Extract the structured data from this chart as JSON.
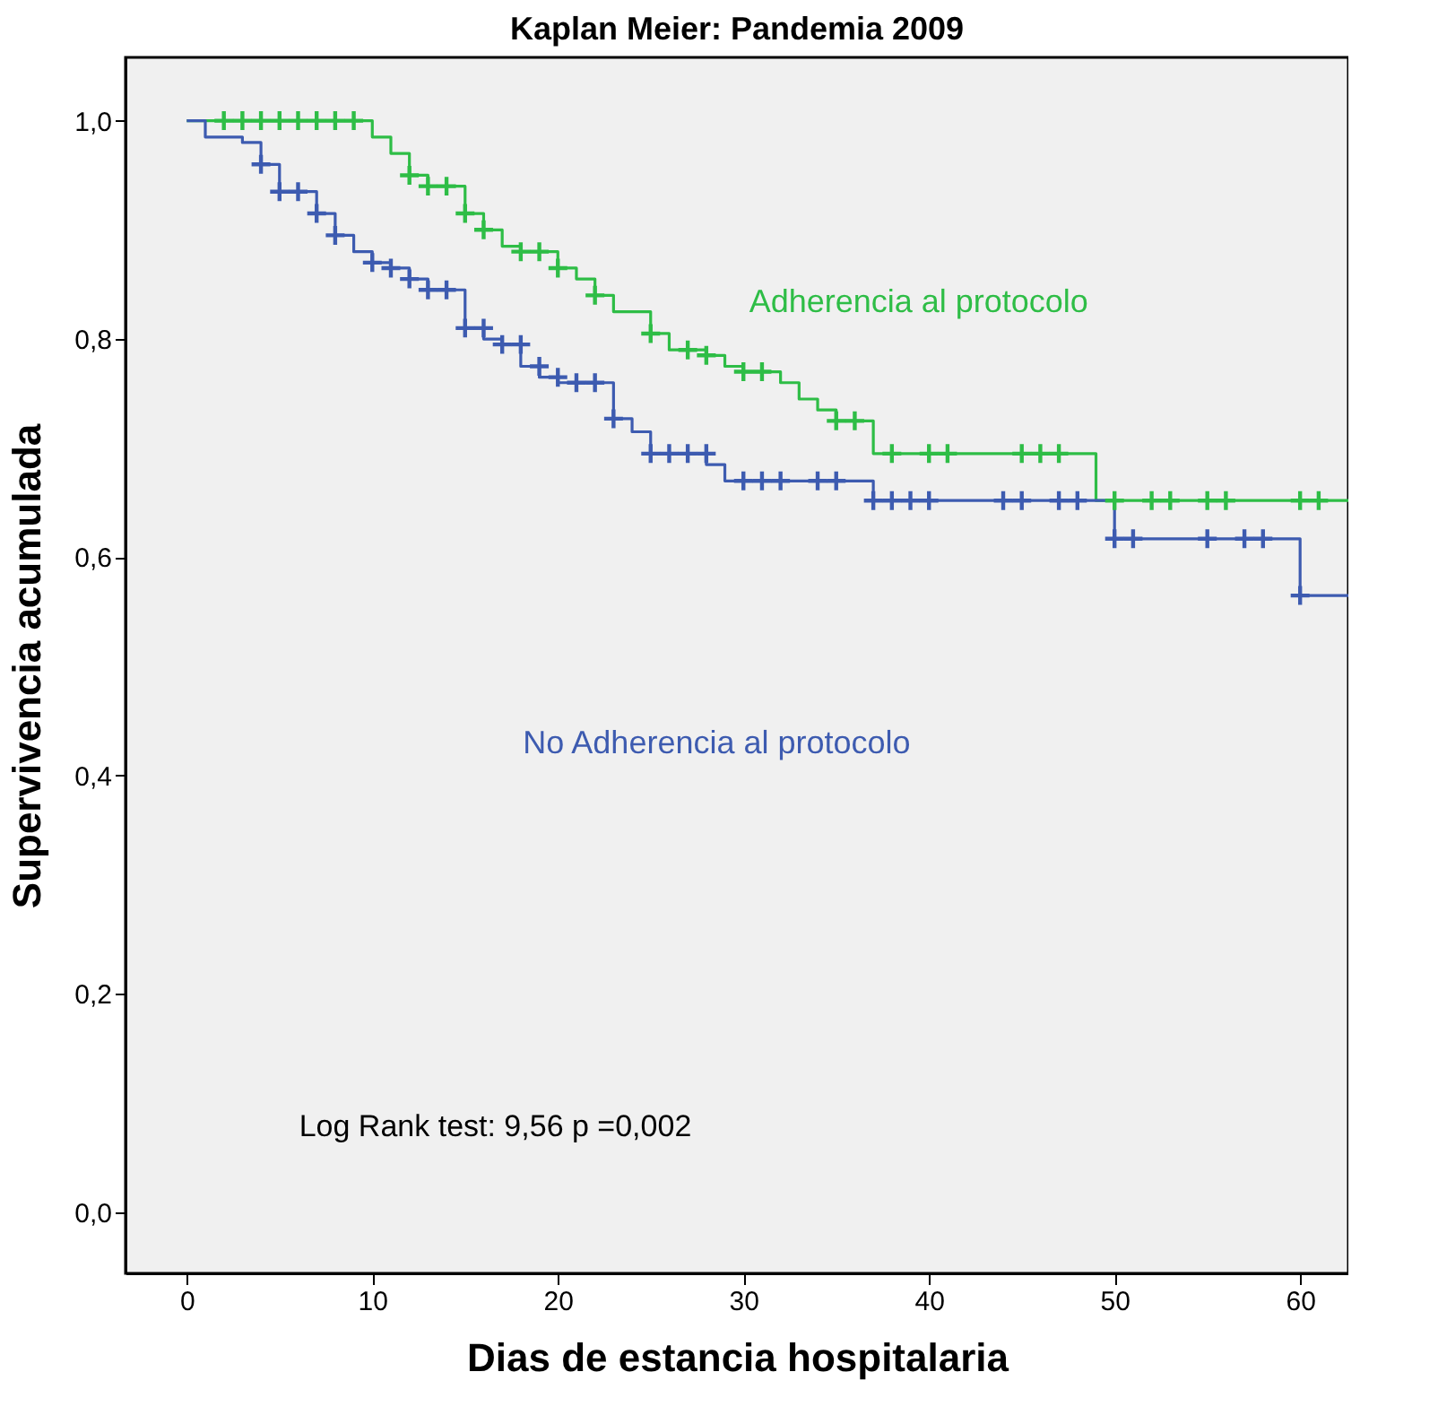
{
  "chart_data": {
    "type": "step",
    "title": "Kaplan Meier: Pandemia 2009",
    "xlabel": "Dias de estancia hospitalaria",
    "ylabel": "Supervivencia acumulada",
    "xlim": [
      -3.3,
      62.6
    ],
    "ylim": [
      -0.056,
      1.058
    ],
    "xticks": [
      0,
      10,
      20,
      30,
      40,
      50,
      60
    ],
    "yticks": [
      {
        "value": 0,
        "label": "0,0"
      },
      {
        "value": 0.2,
        "label": "0,2"
      },
      {
        "value": 0.4,
        "label": "0,4"
      },
      {
        "value": 0.6,
        "label": "0,6"
      },
      {
        "value": 0.8,
        "label": "0,8"
      },
      {
        "value": 1,
        "label": "1,0"
      }
    ],
    "grid": false,
    "line_style": "solid",
    "series": [
      {
        "name": "Adherencia al protocolo",
        "color": "#2ebd46",
        "x": [
          0,
          10,
          11,
          12,
          13,
          15,
          16,
          17,
          18,
          20,
          21,
          22,
          23,
          25,
          26,
          28,
          29,
          30,
          32,
          33,
          34,
          35,
          37,
          49,
          62.6
        ],
        "values": [
          1.0,
          0.985,
          0.97,
          0.95,
          0.94,
          0.915,
          0.9,
          0.885,
          0.88,
          0.865,
          0.855,
          0.84,
          0.825,
          0.805,
          0.79,
          0.785,
          0.775,
          0.77,
          0.76,
          0.745,
          0.735,
          0.725,
          0.695,
          0.652,
          0.652
        ]
      },
      {
        "name": "No Adherencia al protocolo",
        "color": "#3d5bb0",
        "x": [
          0,
          1,
          3,
          4,
          5,
          7,
          8,
          9,
          10,
          11,
          12,
          13,
          15,
          16,
          17,
          18,
          19,
          20,
          23,
          24,
          25,
          28,
          29,
          37,
          50,
          60,
          62.6
        ],
        "values": [
          1.0,
          0.985,
          0.98,
          0.96,
          0.935,
          0.915,
          0.895,
          0.88,
          0.87,
          0.865,
          0.855,
          0.845,
          0.81,
          0.8,
          0.795,
          0.775,
          0.765,
          0.76,
          0.727,
          0.715,
          0.695,
          0.685,
          0.67,
          0.652,
          0.617,
          0.565,
          0.565
        ]
      },
      {
        "type": "scatter",
        "marker": "cross",
        "color": "#2ebd46",
        "x": [
          2,
          3,
          4,
          5,
          6,
          7,
          8,
          9,
          12,
          13,
          14,
          15,
          16,
          18,
          19,
          20,
          22,
          25,
          27,
          28,
          30,
          31,
          35,
          36,
          38,
          40,
          41,
          45,
          46,
          47,
          50,
          52,
          53,
          55,
          56,
          60,
          61
        ],
        "values": [
          1,
          1,
          1,
          1,
          1,
          1,
          1,
          1,
          0.95,
          0.94,
          0.94,
          0.915,
          0.9,
          0.88,
          0.88,
          0.865,
          0.84,
          0.805,
          0.79,
          0.785,
          0.77,
          0.77,
          0.725,
          0.725,
          0.695,
          0.695,
          0.695,
          0.695,
          0.695,
          0.695,
          0.652,
          0.652,
          0.652,
          0.652,
          0.652,
          0.652,
          0.652
        ]
      },
      {
        "type": "scatter",
        "marker": "cross",
        "color": "#3d5bb0",
        "x": [
          4,
          5,
          6,
          7,
          8,
          10,
          11,
          12,
          13,
          14,
          15,
          16,
          17,
          18,
          19,
          20,
          21,
          22,
          23,
          25,
          26,
          27,
          28,
          30,
          31,
          32,
          34,
          35,
          37,
          38,
          39,
          40,
          44,
          45,
          47,
          48,
          50,
          51,
          55,
          57,
          58,
          60
        ],
        "values": [
          0.96,
          0.935,
          0.935,
          0.915,
          0.895,
          0.87,
          0.865,
          0.855,
          0.845,
          0.845,
          0.81,
          0.81,
          0.795,
          0.795,
          0.775,
          0.765,
          0.76,
          0.76,
          0.727,
          0.695,
          0.695,
          0.695,
          0.695,
          0.67,
          0.67,
          0.67,
          0.67,
          0.67,
          0.652,
          0.652,
          0.652,
          0.652,
          0.652,
          0.652,
          0.652,
          0.652,
          0.617,
          0.617,
          0.617,
          0.617,
          0.617,
          0.565
        ]
      }
    ],
    "annotations": [
      "Log Rank test: 9,56 p =0,002"
    ]
  }
}
